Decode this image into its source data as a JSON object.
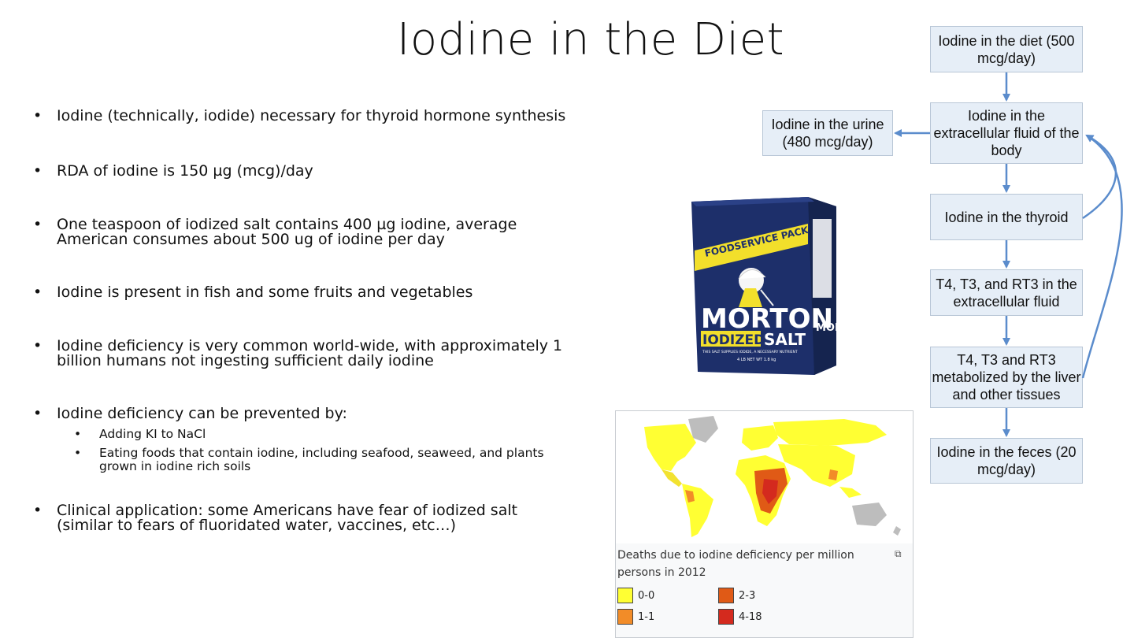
{
  "slide": {
    "title": "Iodine in the Diet"
  },
  "bullets": [
    "Iodine (technically, iodide) necessary for thyroid hormone synthesis",
    "RDA of iodine is 150 µg (mcg)/day",
    "One teaspoon of iodized salt contains 400 µg iodine, average American consumes about 500 ug of iodine per day",
    "Iodine is present in fish and some fruits and vegetables",
    "Iodine deficiency is very common world-wide, with approximately 1 billion humans not ingesting sufficient daily iodine",
    "Iodine deficiency can be prevented by:",
    "Clinical application: some Americans have fear of iodized salt (similar to fears of fluoridated water, vaccines, etc…)"
  ],
  "sub_bullets": [
    "Adding KI to NaCl",
    "Eating foods that contain iodine, including seafood, seaweed, and plants grown in iodine rich soils"
  ],
  "flow": {
    "diet": "Iodine in the diet (500 mcg/day)",
    "ecf": "Iodine in the extracellular fluid of the body",
    "urine": "Iodine in the urine (480 mcg/day)",
    "thyroid": "Iodine in the thyroid",
    "t4_ecf": "T4, T3, and RT3 in the extracellular fluid",
    "metab": "T4, T3 and RT3 metabolized by the liver and other tissues",
    "feces": "Iodine in the feces (20 mcg/day)"
  },
  "salt_box": {
    "band": "FOODSERVICE PACK",
    "brand": "MORTON",
    "iodized": "IODIZED",
    "salt": "SALT",
    "small1": "THIS SALT SUPPLIES IODIDE, A NECESSARY NUTRIENT",
    "small2": "4 LB NET WT 1.8 kg",
    "side": "MOR"
  },
  "map": {
    "caption": "Deaths due to iodine deficiency per million persons in 2012",
    "legend": [
      {
        "label": "0-0",
        "color": "#ffff33"
      },
      {
        "label": "2-3",
        "color": "#e05a16"
      },
      {
        "label": "1-1",
        "color": "#f28c28"
      },
      {
        "label": "4-18",
        "color": "#d42a1e"
      }
    ]
  }
}
